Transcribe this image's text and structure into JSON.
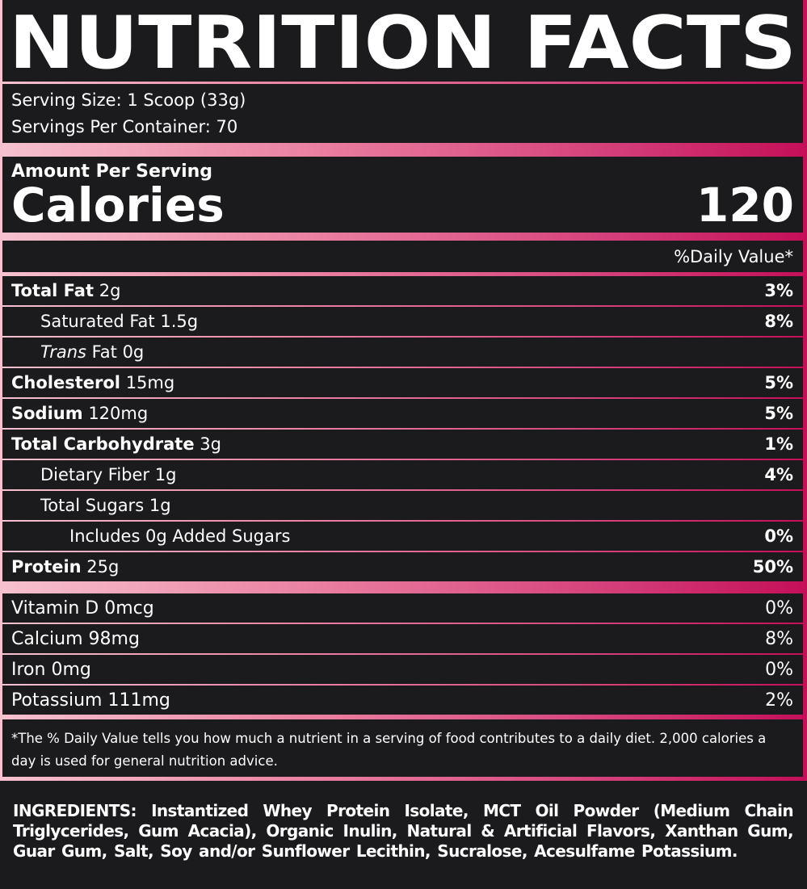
{
  "title": "NUTRITION FACTS",
  "serving": {
    "size": "Serving Size: 1 Scoop (33g)",
    "per_container": "Servings Per Container: 70"
  },
  "calories": {
    "heading": "Amount Per Serving",
    "label": "Calories",
    "value": "120"
  },
  "dv_header": "%Daily Value*",
  "nutrients": [
    {
      "name": "Total Fat",
      "amount": "2g",
      "dv": "3%",
      "bold": true,
      "indent": 0
    },
    {
      "name": "Saturated Fat",
      "amount": "1.5g",
      "dv": "8%",
      "bold": false,
      "indent": 1
    },
    {
      "name": "Trans",
      "amount": "Fat 0g",
      "italic": true,
      "bold": false,
      "indent": 1
    },
    {
      "name": "Cholesterol",
      "amount": "15mg",
      "dv": "5%",
      "bold": true,
      "indent": 0
    },
    {
      "name": "Sodium",
      "amount": "120mg",
      "dv": "5%",
      "bold": true,
      "indent": 0
    },
    {
      "name": "Total Carbohydrate",
      "amount": "3g",
      "dv": "1%",
      "bold": true,
      "indent": 0
    },
    {
      "name": "Dietary Fiber",
      "amount": "1g",
      "dv": "4%",
      "bold": false,
      "indent": 1
    },
    {
      "name": "Total Sugars",
      "amount": "1g",
      "bold": false,
      "indent": 1
    },
    {
      "name": "Includes 0g Added Sugars",
      "dv": "0%",
      "bold": false,
      "indent": 2
    },
    {
      "name": "Protein",
      "amount": "25g",
      "dv": "50%",
      "bold": true,
      "indent": 0
    }
  ],
  "vitamins": [
    {
      "name": "Vitamin D 0mcg",
      "dv": "0%"
    },
    {
      "name": "Calcium 98mg",
      "dv": "8%"
    },
    {
      "name": "Iron 0mg",
      "dv": "0%"
    },
    {
      "name": "Potassium 111mg",
      "dv": "2%"
    }
  ],
  "footnote": "*The % Daily Value tells you how much a nutrient in a serving of food contributes to a daily diet. 2,000 calories a day is used for general nutrition advice.",
  "ingredients": "INGREDIENTS: Instantized Whey Protein Isolate, MCT Oil Powder (Medium Chain Triglycerides, Gum Acacia), Organic Inulin, Natural & Artificial Flavors, Xanthan Gum, Guar Gum, Salt, Soy and/or Sunflower Lecithin, Sucralose, Acesulfame Potassium."
}
